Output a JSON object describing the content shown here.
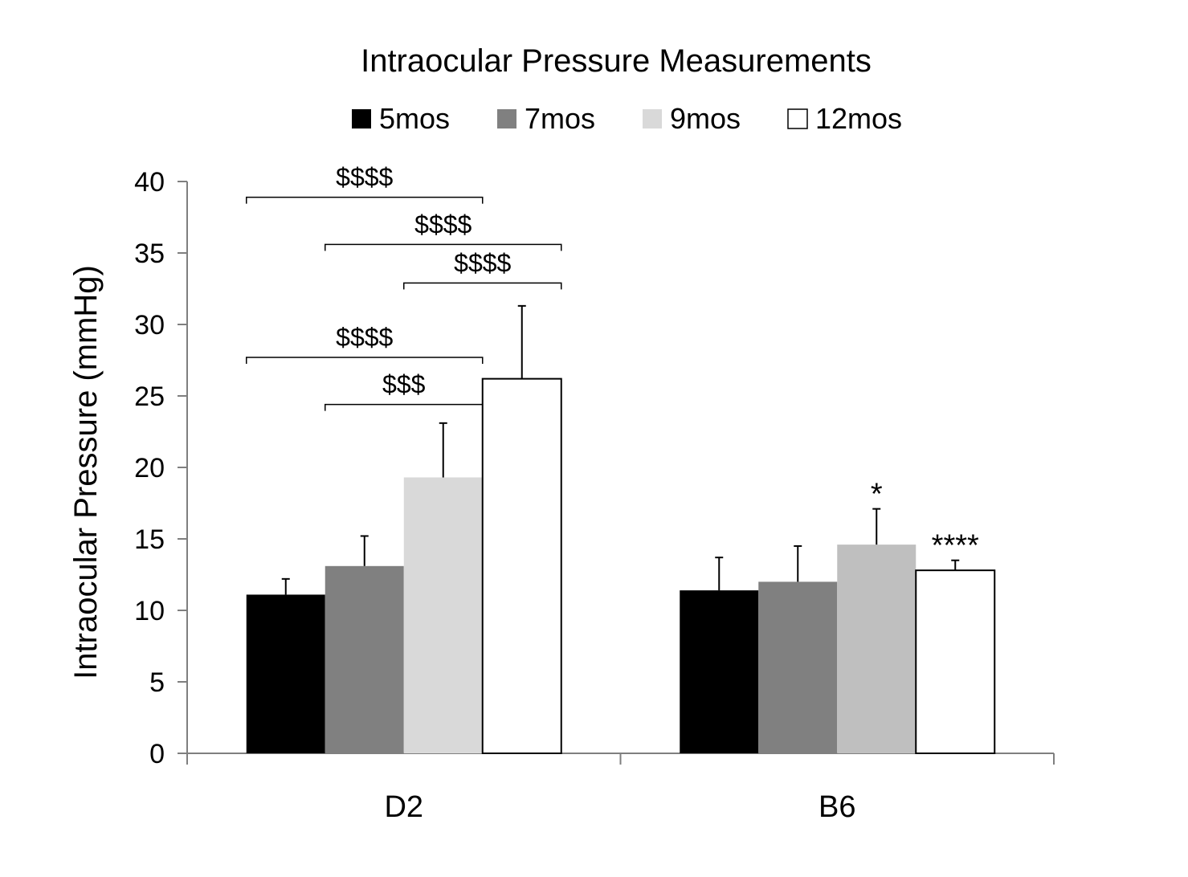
{
  "chart_data": {
    "type": "bar",
    "title": "Intraocular Pressure Measurements",
    "xlabel": "",
    "ylabel": "Intraocular Pressure (mmHg)",
    "ylim": [
      0,
      40
    ],
    "yticks": [
      0,
      5,
      10,
      15,
      20,
      25,
      30,
      35,
      40
    ],
    "legend_position": "top",
    "categories": [
      "D2",
      "B6"
    ],
    "series": [
      {
        "name": "5mos",
        "color": "#000000",
        "values": [
          11.1,
          11.4
        ],
        "errors": [
          1.1,
          2.3
        ]
      },
      {
        "name": "7mos",
        "color": "#808080",
        "values": [
          13.1,
          12.0
        ],
        "errors": [
          2.1,
          2.5
        ]
      },
      {
        "name": "9mos",
        "color_by_category": [
          "#d9d9d9",
          "#bfbfbf"
        ],
        "legend_color": "#d9d9d9",
        "values": [
          19.3,
          14.6
        ],
        "errors": [
          3.8,
          2.5
        ]
      },
      {
        "name": "12mos",
        "color": "#ffffff",
        "values": [
          26.2,
          12.8
        ],
        "errors": [
          5.1,
          0.7
        ]
      }
    ],
    "significance_brackets": [
      {
        "label": "$$$$",
        "category": 0,
        "from_series": 0,
        "to_series": 2,
        "level": 38.9
      },
      {
        "label": "$$$$",
        "category": 0,
        "from_series": 1,
        "to_series": 3,
        "level": 35.6
      },
      {
        "label": "$$$$",
        "category": 0,
        "from_series": 2,
        "to_series": 3,
        "level": 32.9
      },
      {
        "label": "$$$$",
        "category": 0,
        "from_series": 0,
        "to_series": 2,
        "level": 27.7
      },
      {
        "label": "$$$",
        "category": 0,
        "from_series": 1,
        "to_series": 2,
        "level": 24.4
      }
    ],
    "star_annotations": [
      {
        "label": "*",
        "category": 1,
        "series": 2
      },
      {
        "label": "****",
        "category": 1,
        "series": 3
      }
    ]
  }
}
